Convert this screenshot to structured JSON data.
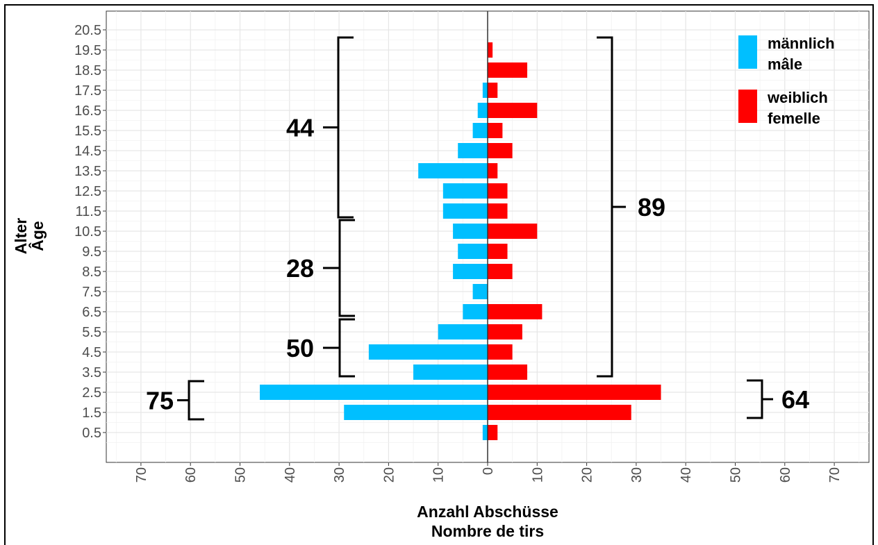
{
  "chart_data": {
    "type": "bar",
    "orientation": "horizontal-pyramid",
    "categories": [
      "0.5",
      "1.5",
      "2.5",
      "3.5",
      "4.5",
      "5.5",
      "6.5",
      "7.5",
      "8.5",
      "9.5",
      "10.5",
      "11.5",
      "12.5",
      "13.5",
      "14.5",
      "15.5",
      "16.5",
      "17.5",
      "18.5",
      "19.5",
      "20.5"
    ],
    "series": [
      {
        "name_lines": [
          "männlich",
          "mâle"
        ],
        "color": "#00BFFF",
        "side": "left",
        "values": [
          1,
          29,
          46,
          15,
          24,
          10,
          5,
          3,
          7,
          6,
          7,
          9,
          9,
          14,
          6,
          3,
          2,
          1,
          0,
          0,
          0
        ]
      },
      {
        "name_lines": [
          "weiblich",
          "femelle"
        ],
        "color": "#FF0000",
        "side": "right",
        "values": [
          2,
          29,
          35,
          8,
          5,
          7,
          11,
          0,
          5,
          4,
          10,
          4,
          4,
          2,
          5,
          3,
          10,
          2,
          8,
          1,
          0
        ]
      }
    ],
    "x_ticks": [
      "70",
      "60",
      "50",
      "40",
      "30",
      "20",
      "10",
      "0",
      "10",
      "20",
      "30",
      "40",
      "50",
      "60",
      "70"
    ],
    "xlim": [
      -77,
      77
    ],
    "xlabel_lines": [
      "Anzahl Abschüsse",
      "Nombre de tirs"
    ],
    "ylabel_lines": [
      "Alter",
      "Âge"
    ],
    "grid": true,
    "legend_position": "top-right",
    "annotations": [
      {
        "label": "75",
        "side": "left",
        "from": "1.5",
        "to": "2.5"
      },
      {
        "label": "50",
        "side": "left",
        "from": "3.5",
        "to": "5.5"
      },
      {
        "label": "28",
        "side": "left",
        "from": "6.5",
        "to": "10.5"
      },
      {
        "label": "44",
        "side": "left",
        "from": "11.5",
        "to": "19.5"
      },
      {
        "label": "64",
        "side": "right",
        "from": "1.5",
        "to": "2.5"
      },
      {
        "label": "89",
        "side": "right",
        "from": "3.5",
        "to": "19.5"
      }
    ]
  }
}
